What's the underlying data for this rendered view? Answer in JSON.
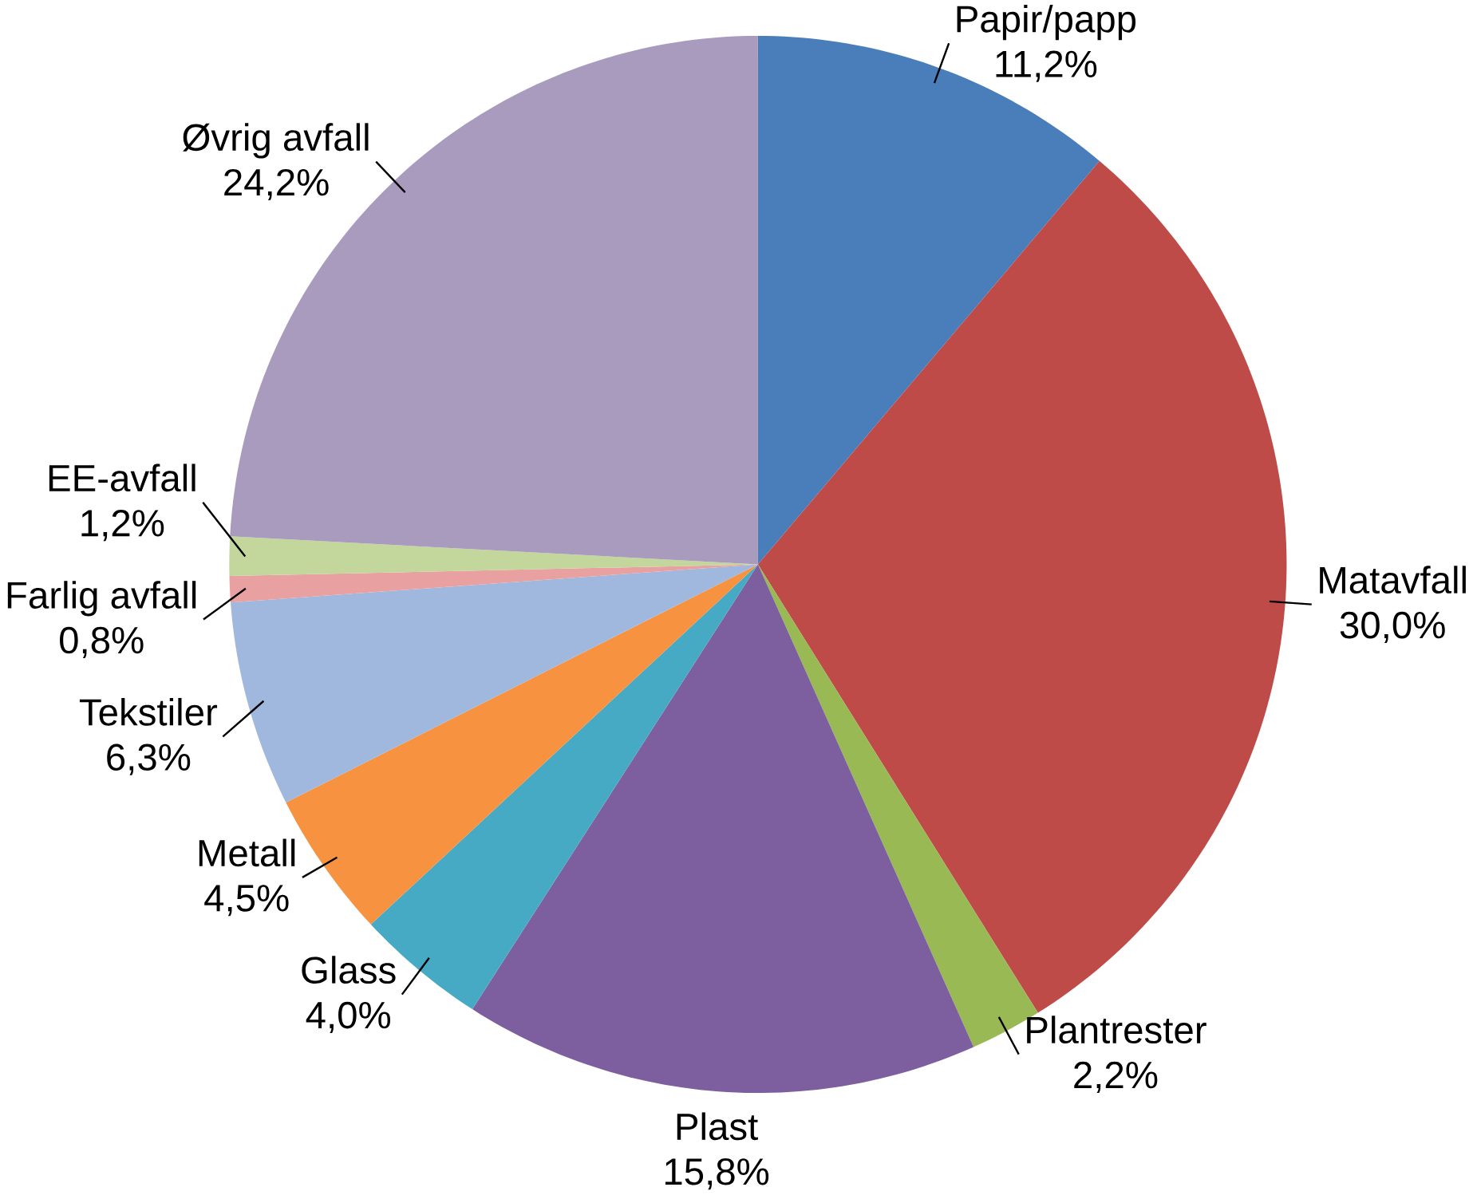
{
  "chart_data": {
    "type": "pie",
    "categories": [
      "Papir/papp",
      "Matavfall",
      "Plantrester",
      "Plast",
      "Glass",
      "Metall",
      "Tekstiler",
      "Farlig avfall",
      "EE-avfall",
      "Øvrig avfall"
    ],
    "values": [
      11.2,
      30.0,
      2.2,
      15.8,
      4.0,
      4.5,
      6.3,
      0.8,
      1.2,
      24.2
    ],
    "value_labels": [
      "11,2%",
      "30,0%",
      "2,2%",
      "15,8%",
      "4,0%",
      "4,5%",
      "6,3%",
      "0,8%",
      "1,2%",
      "24,2%"
    ],
    "colors": [
      "#4a7ebb",
      "#be4b48",
      "#98b954",
      "#7d5fa0",
      "#46aac5",
      "#f69240",
      "#a0b8de",
      "#e8a0a0",
      "#c3d69b",
      "#a99bbd"
    ]
  }
}
